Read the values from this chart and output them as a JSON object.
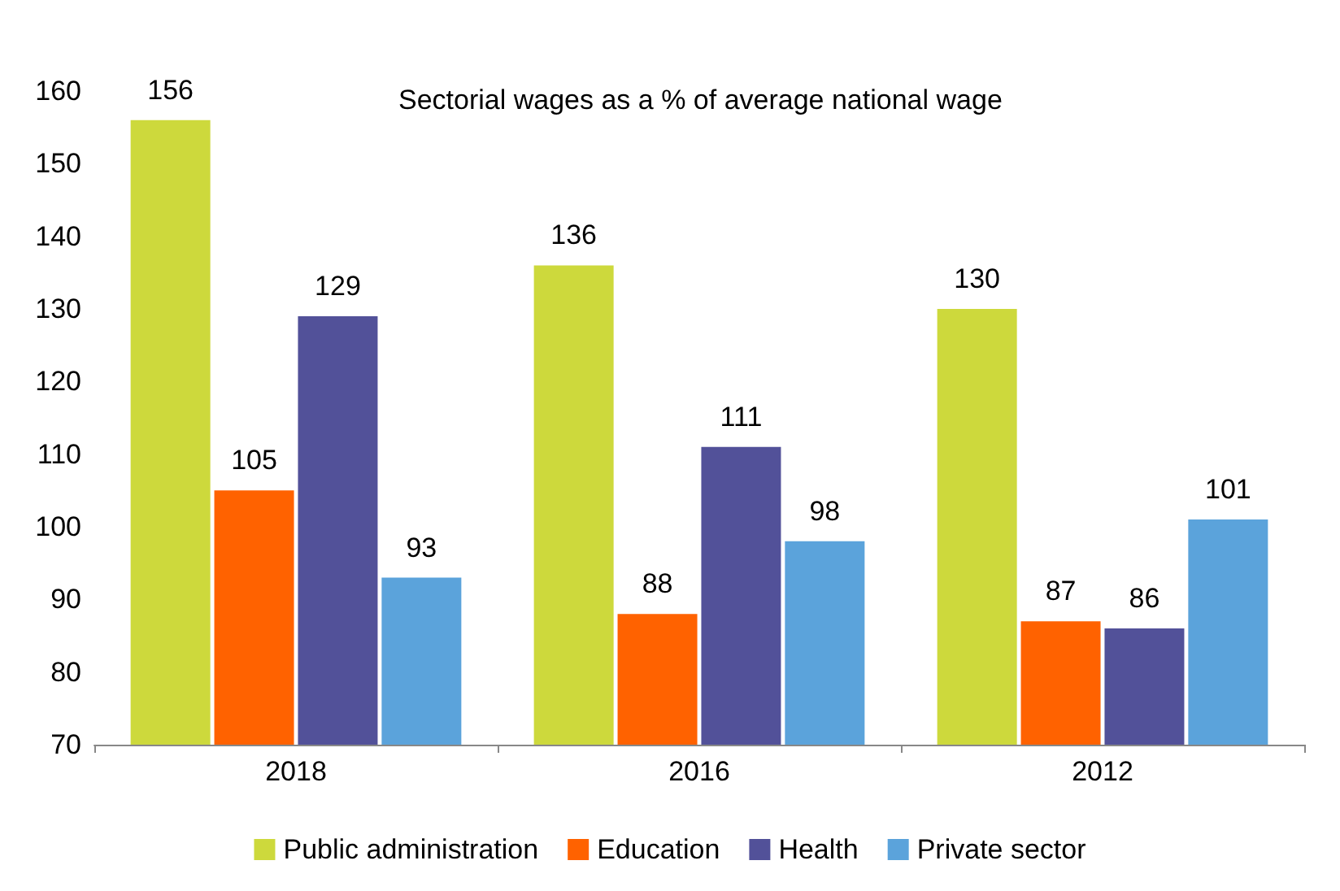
{
  "chart_data": {
    "type": "bar",
    "title": "Sectorial wages as a % of average national wage",
    "categories": [
      "2018",
      "2016",
      "2012"
    ],
    "series": [
      {
        "name": "Public administration",
        "color": "#cdd93c",
        "values": [
          156,
          136,
          130
        ]
      },
      {
        "name": "Education",
        "color": "#ff6200",
        "values": [
          105,
          88,
          87
        ]
      },
      {
        "name": "Health",
        "color": "#525199",
        "values": [
          129,
          111,
          86
        ]
      },
      {
        "name": "Private sector",
        "color": "#5ba3db",
        "values": [
          93,
          98,
          101
        ]
      }
    ],
    "ylim": [
      70,
      160
    ],
    "yticks": [
      70,
      80,
      90,
      100,
      110,
      120,
      130,
      140,
      150,
      160
    ],
    "data_labels": true,
    "legend": "bottom",
    "grid": false
  }
}
